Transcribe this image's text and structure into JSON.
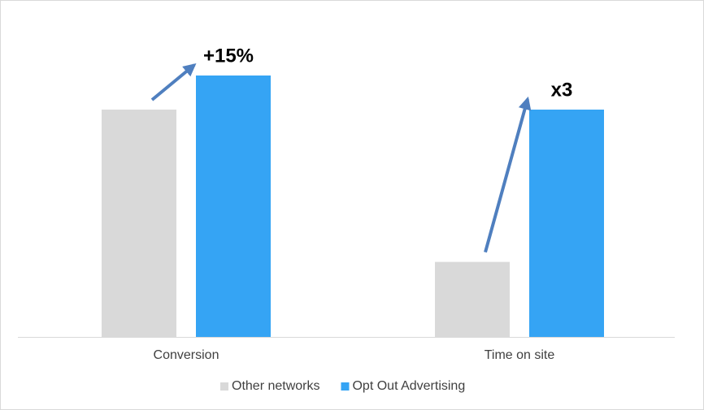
{
  "chart_data": {
    "type": "bar",
    "categories": [
      "Conversion",
      "Time on site"
    ],
    "series": [
      {
        "name": "Other networks",
        "color": "#d9d9d9",
        "values": [
          100,
          33
        ]
      },
      {
        "name": "Opt Out Advertising",
        "color": "#35a4f4",
        "values": [
          115,
          100
        ]
      }
    ],
    "annotations": [
      "+15%",
      "x3"
    ]
  }
}
